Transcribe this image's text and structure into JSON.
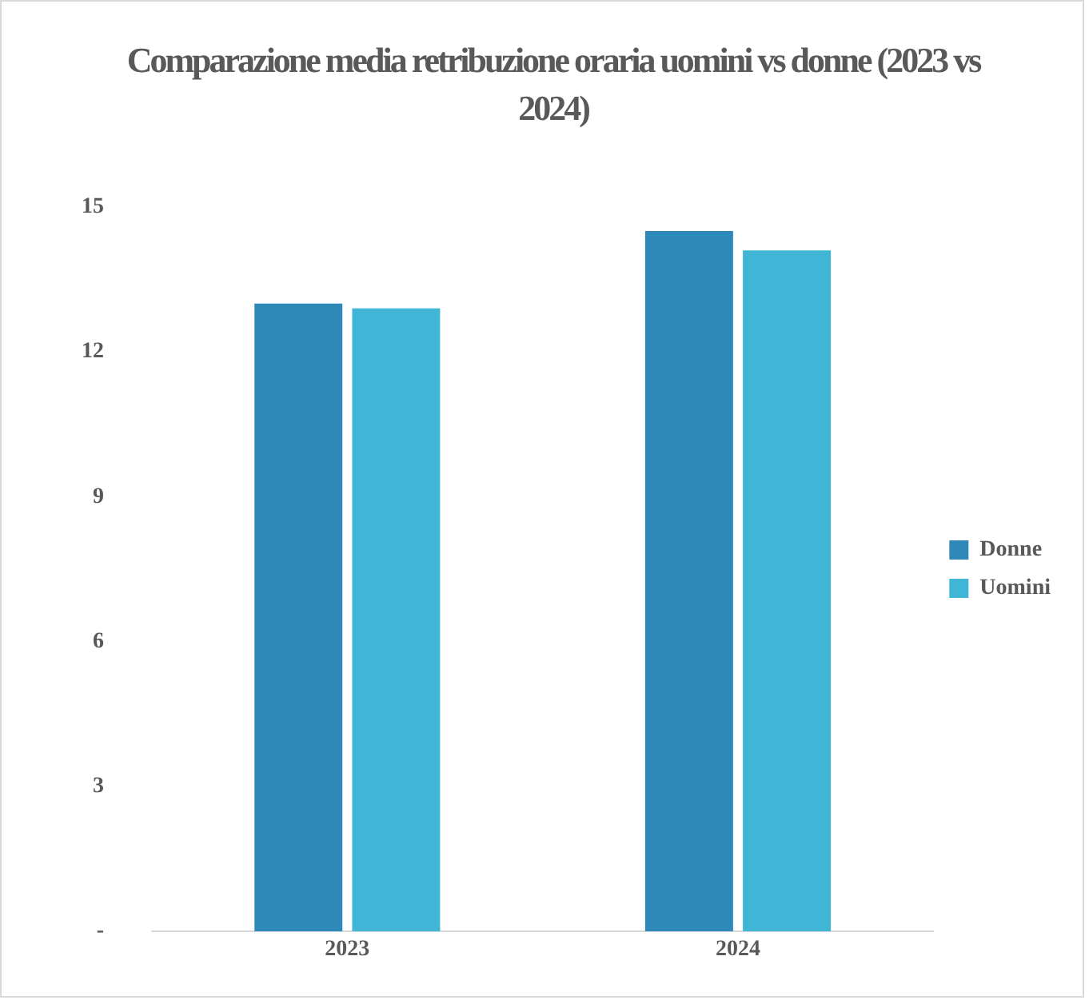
{
  "chart_data": {
    "type": "bar",
    "title": "Comparazione media retribuzione oraria uomini vs donne (2023 vs 2024)",
    "categories": [
      "2023",
      "2024"
    ],
    "series": [
      {
        "name": "Donne",
        "color": "#2e89b9",
        "values": [
          13.0,
          14.5
        ]
      },
      {
        "name": "Uomini",
        "color": "#40b5d6",
        "values": [
          12.9,
          14.1
        ]
      }
    ],
    "ylim": [
      0,
      15
    ],
    "yticks": [
      {
        "value": 0,
        "label": "-"
      },
      3,
      6,
      9,
      12,
      15
    ],
    "grid": false,
    "legend": "right"
  }
}
